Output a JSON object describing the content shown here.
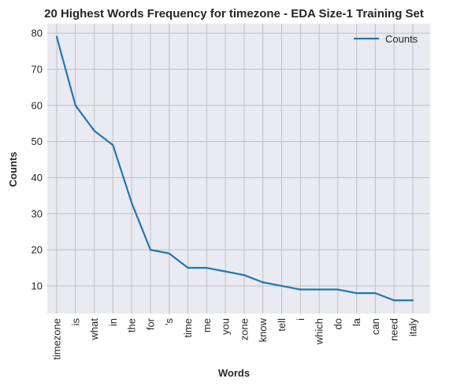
{
  "chart_data": {
    "type": "line",
    "title": "20 Highest Words Frequency for timezone - EDA Size-1 Training Set",
    "xlabel": "Words",
    "ylabel": "Counts",
    "categories": [
      "timezone",
      "is",
      "what",
      "in",
      "the",
      "for",
      "'s",
      "time",
      "me",
      "you",
      "zone",
      "know",
      "tell",
      "i",
      "which",
      "do",
      "la",
      "can",
      "need",
      "italy"
    ],
    "series": [
      {
        "name": "Counts",
        "values": [
          79,
          60,
          53,
          49,
          33,
          20,
          19,
          15,
          15,
          14,
          13,
          11,
          10,
          9,
          9,
          9,
          8,
          8,
          6,
          6
        ]
      }
    ],
    "yticks": [
      10,
      20,
      30,
      40,
      50,
      60,
      70,
      80
    ],
    "ylim": [
      2.35,
      82.65
    ],
    "grid": true,
    "legend": "top-right",
    "colors": {
      "line": "#1f77b4",
      "plot_bg": "#eaeaf2",
      "grid": "#c0c0c0"
    }
  }
}
